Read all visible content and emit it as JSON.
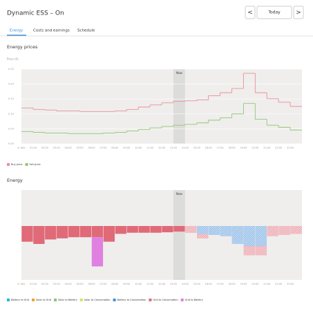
{
  "header": {
    "title": "Dynamic ESS – On",
    "prev": "<",
    "date": "Today",
    "next": ">"
  },
  "tabs": [
    "Energy",
    "Costs and earnings",
    "Schedule"
  ],
  "chart_data": [
    {
      "type": "line",
      "title": "Energy prices",
      "y_label": "Price (€)",
      "annotation": "Now",
      "categories": [
        "8. Dec",
        "01:00",
        "02:00",
        "03:00",
        "04:00",
        "05:00",
        "06:00",
        "07:00",
        "08:00",
        "09:00",
        "10:00",
        "11:00",
        "12:00",
        "13:00",
        "14:00",
        "15:00",
        "16:00",
        "17:00",
        "18:00",
        "19:00",
        "20:00",
        "21:00",
        "22:00",
        "23:00"
      ],
      "series": [
        {
          "name": "Buy price",
          "color": "#ec8d99",
          "values": [
            0.12,
            0.115,
            0.113,
            0.11,
            0.11,
            0.108,
            0.108,
            0.108,
            0.11,
            0.115,
            0.123,
            0.13,
            0.137,
            0.142,
            0.144,
            0.147,
            0.161,
            0.171,
            0.185,
            0.236,
            0.171,
            0.151,
            0.139,
            0.125
          ]
        },
        {
          "name": "Sell price",
          "color": "#8cc870",
          "values": [
            0.041,
            0.038,
            0.036,
            0.036,
            0.034,
            0.034,
            0.034,
            0.036,
            0.038,
            0.043,
            0.048,
            0.053,
            0.058,
            0.062,
            0.065,
            0.07,
            0.079,
            0.087,
            0.1,
            0.135,
            0.082,
            0.062,
            0.055,
            0.046
          ]
        }
      ],
      "ylim": [
        0,
        0.25
      ],
      "yticks": [
        {
          "value": 0,
          "label": "0.00"
        },
        0.05,
        {
          "value": 0.1,
          "label": "0.10"
        },
        0.15,
        {
          "value": 0.2,
          "label": "0.20"
        },
        0.25
      ],
      "grid": true
    },
    {
      "type": "bar",
      "title": "Energy",
      "annotation": "Now",
      "stacked": true,
      "categories": [
        "8. Dec",
        "01:00",
        "02:00",
        "03:00",
        "04:00",
        "05:00",
        "06:00",
        "07:00",
        "08:00",
        "09:00",
        "10:00",
        "11:00",
        "12:00",
        "13:00",
        "14:00",
        "15:00",
        "16:00",
        "17:00",
        "18:00",
        "19:00",
        "20:00",
        "21:00",
        "22:00",
        "23:00"
      ],
      "series": [
        {
          "name": "Battery to Grid",
          "color": "#20b8d8",
          "values": [
            0,
            0,
            0,
            0,
            0,
            0,
            0,
            0,
            0,
            0,
            0,
            0,
            0,
            0,
            0,
            0,
            0,
            0,
            0,
            0,
            0,
            0,
            0,
            0
          ]
        },
        {
          "name": "Solar to Grid",
          "color": "#f0a030",
          "values": [
            0,
            0,
            0,
            0,
            0,
            0,
            0,
            0,
            0,
            0,
            0,
            0,
            0,
            0,
            0,
            0,
            0,
            0,
            0,
            0,
            0,
            0,
            0,
            0
          ]
        },
        {
          "name": "Solar to Battery",
          "color": "#8cc870",
          "values": [
            0,
            0,
            0,
            0,
            0,
            0,
            0,
            0,
            0,
            0,
            0,
            0,
            0,
            0,
            0,
            0,
            0,
            0,
            0,
            0,
            0,
            0,
            0,
            0
          ]
        },
        {
          "name": "Solar to Consumption",
          "color": "#d8e060",
          "values": [
            0,
            0,
            0,
            0,
            0,
            0,
            0,
            0,
            0,
            0,
            0,
            0,
            0,
            0,
            0,
            0,
            0,
            0,
            0,
            0,
            0,
            0,
            0,
            0
          ]
        },
        {
          "name": "Battery to Consumption",
          "color": "#4a8fd8",
          "values": [
            0,
            0,
            0,
            0,
            0,
            0,
            0,
            0,
            0,
            0,
            0,
            0,
            0,
            0,
            0,
            -0.35,
            -0.4,
            -0.45,
            -0.8,
            -0.9,
            -0.9,
            0,
            0,
            0
          ]
        },
        {
          "name": "Grid to Consumption",
          "color": "#e06a78",
          "values": [
            -0.7,
            -0.8,
            -0.6,
            -0.55,
            -0.5,
            -0.5,
            -0.5,
            -0.7,
            -0.35,
            -0.3,
            -0.3,
            -0.3,
            -0.28,
            -0.25,
            -0.3,
            -0.2,
            0,
            0,
            0,
            -0.4,
            -0.4,
            -0.45,
            -0.4,
            -0.35
          ]
        },
        {
          "name": "Grid to Battery",
          "color": "#e080e0",
          "values": [
            0,
            0,
            0,
            0,
            0,
            0,
            -1.3,
            0,
            0,
            0,
            0,
            0,
            0,
            0,
            0,
            0,
            0,
            0,
            0,
            0,
            0,
            0,
            0,
            0
          ]
        }
      ],
      "ylim": [
        -2.4,
        1.6
      ]
    }
  ]
}
